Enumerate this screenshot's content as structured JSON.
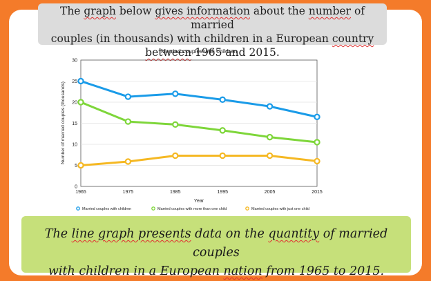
{
  "prompt": {
    "p1": "The ",
    "graph": "graph",
    "p2": " below ",
    "gives": "gives information",
    "p3": " about the ",
    "number": "number",
    "p4": " of married",
    "line2": "couples (in thousands) with children in a European ",
    "country": "country",
    "between": "between",
    "p5": " 1965 and 2015."
  },
  "answer": {
    "a1": "The ",
    "line_graph": "line graph presents",
    "a2": " data on the ",
    "quantity": "quantity",
    "a3": " of married couples",
    "a4": "with children in a European ",
    "nation": "nation",
    "a5": " from 1965 to 2015."
  },
  "chart_data": {
    "type": "line",
    "title": "Married couples with children",
    "xlabel": "Year",
    "ylabel": "Number of married couples (thousands)",
    "ylim": [
      0,
      30
    ],
    "yticks": [
      0,
      5,
      10,
      15,
      20,
      25,
      30
    ],
    "x": [
      1965,
      1975,
      1985,
      1995,
      2005,
      2015
    ],
    "series": [
      {
        "name": "Married couples with children",
        "color": "#1a9be8",
        "values": [
          25,
          21.3,
          22,
          20.6,
          19,
          16.5
        ]
      },
      {
        "name": "Married couples with more than one child",
        "color": "#7ed63a",
        "values": [
          20,
          15.4,
          14.7,
          13.3,
          11.7,
          10.5
        ]
      },
      {
        "name": "Married couples with just one child",
        "color": "#f5b823",
        "values": [
          5,
          5.9,
          7.3,
          7.3,
          7.3,
          6
        ]
      }
    ],
    "legend": "bottom"
  }
}
